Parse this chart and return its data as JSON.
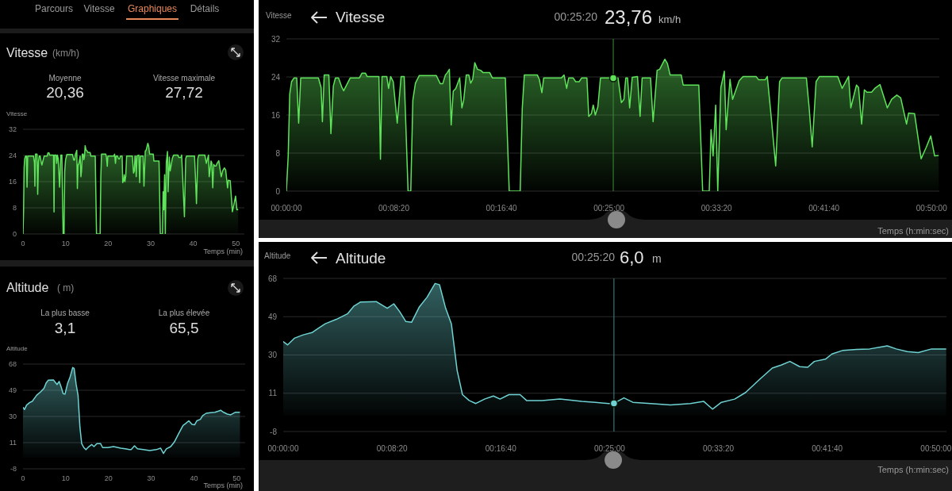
{
  "chart_data": [
    {
      "type": "area",
      "title": "Vitesse",
      "subtitle": "(km/h)",
      "ylabel": "Vitesse",
      "xlabel": "Temps (min)",
      "annotations": [
        "Parcours",
        "Vitesse",
        "Graphiques",
        "Détails",
        "Moyenne",
        "20,36",
        "Vitesse maximale",
        "27,72"
      ],
      "xlim": [
        0,
        52
      ],
      "xticks": [
        0,
        10,
        20,
        30,
        40,
        50
      ],
      "ylim": [
        0,
        32
      ],
      "yticks": [
        0,
        8,
        16,
        24,
        32
      ],
      "grid": "y",
      "x": [
        0,
        0.14,
        0.26,
        0.4,
        0.6,
        0.8,
        0.95,
        1.11,
        2.48,
        2.69,
        2.79,
        2.93,
        3.29,
        3.45,
        3.64,
        3.8,
        4.04,
        4.3,
        4.44,
        4.95,
        5.66,
        5.86,
        6.12,
        6.26,
        7.17,
        7.29,
        7.41,
        7.78,
        7.92,
        8.08,
        8.28,
        8.59,
        8.89,
        9.13,
        9.43,
        9.64,
        9.8,
        10,
        10.3,
        11.62,
        11.92,
        12.12,
        12.32,
        12.47,
        12.63,
        12.77,
        12.93,
        13.13,
        13.43,
        13.6,
        13.74,
        13.94,
        14.14,
        14.28,
        14.44,
        14.6,
        14.81,
        15.05,
        15.25,
        15.76,
        15.96,
        16.97,
        17.27,
        18.12,
        18.28,
        18.44,
        19.45,
        19.6,
        19.8,
        19.94,
        21.31,
        21.52,
        21.72,
        21.88,
        22.22,
        22.42,
        22.69,
        22.89,
        23.29,
        23.43,
        23.64,
        23.78,
        23.94,
        24.14,
        24.34,
        25.29,
        25.7,
        25.96,
        26.16,
        26.3,
        26.44,
        26.6,
        26.8,
        27.21,
        27.41,
        27.57,
        28.22,
        28.42,
        28.73,
        28.93,
        29.33,
        29.53,
        29.74,
        30.6,
        30.75,
        31.96,
        32.26,
        32.77,
        32.91,
        33.07,
        33.27,
        33.43,
        33.67,
        33.94,
        34.08,
        34.38,
        34.58,
        35.09,
        35.39,
        36.4,
        36.6,
        37.11,
        37.27,
        37.51,
        37.92,
        38.22,
        38.42,
        40.3,
        40.5,
        40.75,
        41.05,
        41.31,
        42.73,
        43.07,
        43.57,
        43.74,
        44.18,
        44.34,
        44.58,
        44.79,
        44.99,
        45.35,
        45.6,
        46,
        46.57,
        46.91,
        47.31,
        47.61,
        48.06,
        48.22,
        48.68,
        49.19,
        49.6,
        49.94,
        50.24,
        50.55
      ],
      "series": [
        {
          "color": "#5fe35a",
          "values": [
            0,
            7.4,
            20.4,
            23,
            23.8,
            23.8,
            14.3,
            23.8,
            23.8,
            21.8,
            14.6,
            24.4,
            24.4,
            12.1,
            22.1,
            23.8,
            23.8,
            21.8,
            21.1,
            23.8,
            23.8,
            24.8,
            24.8,
            24.1,
            24.1,
            6.7,
            24.1,
            24.1,
            21.6,
            24.1,
            23,
            14.3,
            24.1,
            24.1,
            0,
            0,
            19.1,
            22.7,
            24.3,
            24.3,
            22.6,
            22.6,
            24.4,
            24.9,
            25.6,
            13.9,
            21,
            21.6,
            23.8,
            17.5,
            19.1,
            24.4,
            24.4,
            22.7,
            23.5,
            27,
            25.6,
            25.4,
            24.9,
            24.9,
            23.8,
            23.8,
            0,
            0,
            17.4,
            24.4,
            24.4,
            23.5,
            20.7,
            23.8,
            23.8,
            24.4,
            21.6,
            23.8,
            23.8,
            23,
            23,
            23.8,
            23.8,
            15.7,
            16.3,
            18.1,
            16,
            17.7,
            23.8,
            23.8,
            23.8,
            18.6,
            19.3,
            23.8,
            23.8,
            17.5,
            23.9,
            24.1,
            15.7,
            23.8,
            23.8,
            14.6,
            25.4,
            25.6,
            27.72,
            26.8,
            24.4,
            24.4,
            22.3,
            22.3,
            0,
            0,
            12.9,
            7.4,
            18.1,
            0,
            21.8,
            25.2,
            12.9,
            23.5,
            19.3,
            23.2,
            24.1,
            24.1,
            23.4,
            23.4,
            24.1,
            17.4,
            5.3,
            23,
            23.8,
            23.8,
            17.9,
            9.3,
            23,
            24.1,
            24.1,
            21.6,
            24.1,
            17.5,
            22.3,
            21.8,
            14.1,
            21.3,
            20.8,
            20.8,
            21.6,
            22.4,
            17.5,
            19.3,
            20.2,
            19.6,
            14.1,
            16.4,
            16.3,
            6.8,
            9.3,
            11.6,
            7.4,
            7.5
          ]
        }
      ]
    },
    {
      "type": "area",
      "title": "Altitude",
      "subtitle": "( m)",
      "ylabel": "Altitude",
      "xlabel": "Temps (min)",
      "annotations": [
        "La plus basse",
        "3,1",
        "La plus élevée",
        "65,5"
      ],
      "xlim": [
        0,
        52
      ],
      "xticks": [
        0,
        10,
        20,
        30,
        40,
        50
      ],
      "ylim": [
        -8,
        68
      ],
      "yticks": [
        -8,
        11,
        30,
        49,
        68
      ],
      "grid": "y",
      "x": [
        0,
        0.34,
        0.85,
        1.53,
        2.2,
        2.71,
        3.22,
        4.07,
        4.92,
        5.42,
        5.93,
        7.12,
        7.97,
        8.47,
        8.92,
        9.39,
        9.83,
        10.41,
        11.02,
        11.63,
        11.97,
        12.44,
        12.88,
        13.32,
        13.73,
        14.24,
        14.75,
        15.42,
        16.1,
        16.61,
        17.29,
        18.14,
        18.64,
        19.83,
        21.19,
        22.88,
        23.9,
        24.92,
        25.333,
        26.1,
        26.78,
        28.14,
        29.66,
        31.19,
        32.2,
        32.88,
        33.56,
        34.58,
        35.42,
        36.44,
        37.46,
        38.14,
        38.81,
        39.56,
        40.17,
        40.68,
        41.53,
        42.03,
        42.88,
        43.9,
        44.92,
        45.76,
        46.27,
        46.95,
        47.8,
        48.64,
        49.66,
        50.78
      ],
      "series": [
        {
          "color": "#6fd3d3",
          "values": [
            36.7,
            35,
            38.3,
            40,
            41.1,
            43.3,
            45.5,
            47.7,
            50.4,
            54.3,
            56.3,
            56.5,
            53.2,
            55.4,
            51.5,
            46.6,
            46.2,
            53.7,
            58.7,
            65.5,
            64.9,
            53.2,
            45.5,
            22.4,
            10.3,
            7.4,
            5.9,
            8.1,
            9.6,
            8.1,
            10.3,
            10.3,
            7.4,
            7.4,
            8.1,
            7,
            6.5,
            5.9,
            6,
            8.7,
            6.5,
            5.9,
            5.2,
            5.9,
            7,
            3.1,
            6.5,
            8.1,
            11.4,
            17.6,
            23.5,
            25,
            26.8,
            24.2,
            23.9,
            26.8,
            27.9,
            30.5,
            32.3,
            32.8,
            33,
            33.9,
            34.5,
            33,
            31.7,
            31.2,
            33,
            33
          ]
        }
      ]
    },
    {
      "type": "area",
      "title": "Vitesse",
      "ylabel": "Vitesse",
      "xlabel": "Temps (h:min:sec)",
      "annotations": [
        "00:25:20",
        "23,76",
        "km/h"
      ],
      "xlim": [
        0,
        50.6
      ],
      "xticks": [
        {
          "value": 0,
          "label": "00:00:00"
        },
        {
          "value": 8.333,
          "label": "00:08:20"
        },
        {
          "value": 16.667,
          "label": "00:16:40"
        },
        {
          "value": 25,
          "label": "00:25:00"
        },
        {
          "value": 33.333,
          "label": "00:33:20"
        },
        {
          "value": 41.667,
          "label": "00:41:40"
        },
        {
          "value": 50,
          "label": "00:50:00"
        }
      ],
      "ylim": [
        0,
        32
      ],
      "yticks": [
        0,
        8,
        16,
        24,
        32
      ],
      "grid": "y",
      "ref_lines": [
        {
          "axis": "x",
          "value": 25.333,
          "color": "#3f8f3a"
        }
      ],
      "x": [
        0,
        0.14,
        0.26,
        0.4,
        0.6,
        0.8,
        0.95,
        1.11,
        2.48,
        2.69,
        2.79,
        2.93,
        3.29,
        3.45,
        3.64,
        3.8,
        4.04,
        4.3,
        4.44,
        4.95,
        5.66,
        5.86,
        6.12,
        6.26,
        7.17,
        7.29,
        7.41,
        7.78,
        7.92,
        8.08,
        8.28,
        8.59,
        8.89,
        9.13,
        9.43,
        9.64,
        9.8,
        10,
        10.3,
        11.62,
        11.92,
        12.12,
        12.32,
        12.47,
        12.63,
        12.77,
        12.93,
        13.13,
        13.43,
        13.6,
        13.74,
        13.94,
        14.14,
        14.28,
        14.44,
        14.6,
        14.81,
        15.05,
        15.25,
        15.76,
        15.96,
        16.97,
        17.27,
        18.12,
        18.28,
        18.44,
        19.45,
        19.6,
        19.8,
        19.94,
        21.31,
        21.52,
        21.72,
        21.88,
        22.22,
        22.42,
        22.69,
        22.89,
        23.29,
        23.43,
        23.64,
        23.78,
        23.94,
        24.14,
        24.34,
        25.29,
        25.7,
        25.96,
        26.16,
        26.3,
        26.44,
        26.6,
        26.8,
        27.21,
        27.41,
        27.57,
        28.22,
        28.42,
        28.73,
        28.93,
        29.33,
        29.53,
        29.74,
        30.6,
        30.75,
        31.96,
        32.26,
        32.77,
        32.91,
        33.07,
        33.27,
        33.43,
        33.67,
        33.94,
        34.08,
        34.38,
        34.58,
        35.09,
        35.39,
        36.4,
        36.6,
        37.11,
        37.27,
        37.51,
        37.92,
        38.22,
        38.42,
        40.3,
        40.5,
        40.75,
        41.05,
        41.31,
        42.73,
        43.07,
        43.57,
        43.74,
        44.18,
        44.34,
        44.58,
        44.79,
        44.99,
        45.35,
        45.6,
        46,
        46.57,
        46.91,
        47.31,
        47.61,
        48.06,
        48.22,
        48.68,
        49.19,
        49.6,
        49.94,
        50.24,
        50.55
      ],
      "series": [
        {
          "color": "#5fe35a",
          "values": [
            0,
            7.4,
            20.4,
            23,
            23.8,
            23.8,
            14.3,
            23.8,
            23.8,
            21.8,
            14.6,
            24.4,
            24.4,
            12.1,
            22.1,
            23.8,
            23.8,
            21.8,
            21.1,
            23.8,
            23.8,
            24.8,
            24.8,
            24.1,
            24.1,
            6.7,
            24.1,
            24.1,
            21.6,
            24.1,
            23,
            14.3,
            24.1,
            24.1,
            0,
            0,
            19.1,
            22.7,
            24.3,
            24.3,
            22.6,
            22.6,
            24.4,
            24.9,
            25.6,
            13.9,
            21,
            21.6,
            23.8,
            17.5,
            19.1,
            24.4,
            24.4,
            22.7,
            23.5,
            27,
            25.6,
            25.4,
            24.9,
            24.9,
            23.8,
            23.8,
            0,
            0,
            17.4,
            24.4,
            24.4,
            23.5,
            20.7,
            23.8,
            23.8,
            24.4,
            21.6,
            23.8,
            23.8,
            23,
            23,
            23.8,
            23.8,
            15.7,
            16.3,
            18.1,
            16,
            17.7,
            23.8,
            23.8,
            23.8,
            18.6,
            19.3,
            23.8,
            23.8,
            17.5,
            23.9,
            24.1,
            15.7,
            23.8,
            23.8,
            14.6,
            25.4,
            25.6,
            27.72,
            26.8,
            24.4,
            24.4,
            22.3,
            22.3,
            0,
            0,
            12.9,
            7.4,
            18.1,
            0,
            21.8,
            25.2,
            12.9,
            23.5,
            19.3,
            23.2,
            24.1,
            24.1,
            23.4,
            23.4,
            24.1,
            17.4,
            5.3,
            23,
            23.8,
            23.8,
            17.9,
            9.3,
            23,
            24.1,
            24.1,
            21.6,
            24.1,
            17.5,
            22.3,
            21.8,
            14.1,
            21.3,
            20.8,
            20.8,
            21.6,
            22.4,
            17.5,
            19.3,
            20.2,
            19.6,
            14.1,
            16.4,
            16.3,
            6.8,
            9.3,
            11.6,
            7.4,
            7.5
          ]
        },
        {
          "type": "scatter",
          "color": "#5fe35a",
          "marker": "circle",
          "x": [
            25.333
          ],
          "values": [
            23.76
          ]
        }
      ]
    },
    {
      "type": "area",
      "title": "Altitude",
      "ylabel": "Altitude",
      "xlabel": "Temps (h:min:sec)",
      "annotations": [
        "00:25:20",
        "6,0",
        "m"
      ],
      "xlim": [
        0,
        50.8
      ],
      "xticks": [
        {
          "value": 0,
          "label": "00:00:00"
        },
        {
          "value": 8.333,
          "label": "00:08:20"
        },
        {
          "value": 16.667,
          "label": "00:16:40"
        },
        {
          "value": 25,
          "label": "00:25:00"
        },
        {
          "value": 33.333,
          "label": "00:33:20"
        },
        {
          "value": 41.667,
          "label": "00:41:40"
        },
        {
          "value": 50,
          "label": "00:50:00"
        }
      ],
      "ylim": [
        -8,
        68
      ],
      "yticks": [
        -8,
        11,
        30,
        49,
        68
      ],
      "grid": "y",
      "ref_lines": [
        {
          "axis": "x",
          "value": 25.333,
          "color": "#3d8c8c"
        }
      ],
      "x": [
        0,
        0.34,
        0.85,
        1.53,
        2.2,
        2.71,
        3.22,
        4.07,
        4.92,
        5.42,
        5.93,
        7.12,
        7.97,
        8.47,
        8.92,
        9.39,
        9.83,
        10.41,
        11.02,
        11.63,
        11.97,
        12.44,
        12.88,
        13.32,
        13.73,
        14.24,
        14.75,
        15.42,
        16.1,
        16.61,
        17.29,
        18.14,
        18.64,
        19.83,
        21.19,
        22.88,
        23.9,
        24.92,
        25.333,
        26.1,
        26.78,
        28.14,
        29.66,
        31.19,
        32.2,
        32.88,
        33.56,
        34.58,
        35.42,
        36.44,
        37.46,
        38.14,
        38.81,
        39.56,
        40.17,
        40.68,
        41.53,
        42.03,
        42.88,
        43.9,
        44.92,
        45.76,
        46.27,
        46.95,
        47.8,
        48.64,
        49.66,
        50.78
      ],
      "series": [
        {
          "color": "#6fd3d3",
          "values": [
            36.7,
            35,
            38.3,
            40,
            41.1,
            43.3,
            45.5,
            47.7,
            50.4,
            54.3,
            56.3,
            56.5,
            53.2,
            55.4,
            51.5,
            46.6,
            46.2,
            53.7,
            58.7,
            65.5,
            64.9,
            53.2,
            45.5,
            22.4,
            10.3,
            7.4,
            5.9,
            8.1,
            9.6,
            8.1,
            10.3,
            10.3,
            7.4,
            7.4,
            8.1,
            7,
            6.5,
            5.9,
            6,
            8.7,
            6.5,
            5.9,
            5.2,
            5.9,
            7,
            3.1,
            6.5,
            8.1,
            11.4,
            17.6,
            23.5,
            25,
            26.8,
            24.2,
            23.9,
            26.8,
            27.9,
            30.5,
            32.3,
            32.8,
            33,
            33.9,
            34.5,
            33,
            31.7,
            31.2,
            33,
            33
          ]
        },
        {
          "type": "scatter",
          "color": "#6fd3d3",
          "marker": "circle",
          "x": [
            25.333
          ],
          "values": [
            6
          ]
        }
      ]
    }
  ]
}
